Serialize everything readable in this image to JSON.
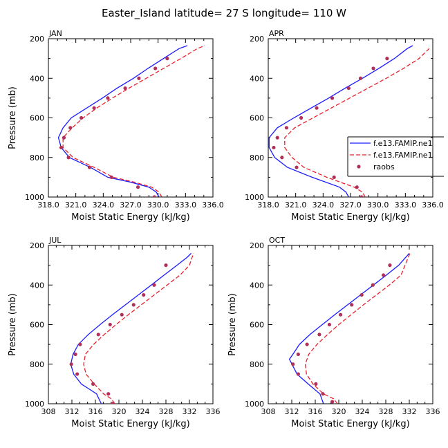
{
  "title": "Easter_Island  latitude= 27 S longitude= 110 W",
  "legend": {
    "entries": [
      {
        "label": "f.e13.FAMIP.ne1",
        "style": "solid",
        "color": "#1a1aff"
      },
      {
        "label": "f.e13.FAMIP.ne1",
        "style": "dashed",
        "color": "#e8202a"
      },
      {
        "label": "raobs",
        "style": "dot",
        "color": "#b0305a"
      }
    ]
  },
  "chart_data": [
    {
      "type": "line",
      "title": "JAN",
      "xlabel": "Moist Static Energy (kJ/kg)",
      "ylabel": "Pressure (mb)",
      "xlim": [
        318.0,
        336.0
      ],
      "ylim": [
        1000,
        200
      ],
      "xticks": [
        318.0,
        321.0,
        324.0,
        327.0,
        330.0,
        333.0,
        336.0
      ],
      "xtick_labels": [
        "318.0",
        "321.0",
        "324.0",
        "327.0",
        "330.0",
        "333.0",
        "336.0"
      ],
      "yticks": [
        200,
        400,
        600,
        800,
        1000
      ],
      "ytick_labels": [
        "200",
        "400",
        "600",
        "800",
        "1000"
      ],
      "series": [
        {
          "name": "f.e13.FAMIP.ne1",
          "style": "solid",
          "color": "#1a1aff",
          "x": [
            330.1,
            329.8,
            329.0,
            327.0,
            324.5,
            322.6,
            320.3,
            319.4,
            319.1,
            319.6,
            320.5,
            322.2,
            323.9,
            325.5,
            327.3,
            328.9,
            330.6,
            332.3,
            333.2
          ],
          "y": [
            1000,
            975,
            950,
            925,
            900,
            850,
            800,
            750,
            700,
            650,
            600,
            550,
            500,
            450,
            400,
            350,
            300,
            250,
            235
          ]
        },
        {
          "name": "f.e13.FAMIP.ne1",
          "style": "dashed",
          "color": "#e8202a",
          "x": [
            330.4,
            330.1,
            329.3,
            327.4,
            325.1,
            323.0,
            320.7,
            319.6,
            319.6,
            320.6,
            321.8,
            323.3,
            325.0,
            326.8,
            328.7,
            330.6,
            332.5,
            334.3,
            335.1
          ],
          "y": [
            1000,
            975,
            950,
            925,
            900,
            850,
            800,
            750,
            700,
            650,
            600,
            550,
            500,
            450,
            400,
            350,
            300,
            250,
            235
          ]
        },
        {
          "name": "raobs",
          "style": "dot",
          "color": "#b0305a",
          "x": [
            329.6,
            327.8,
            324.9,
            322.5,
            320.2,
            319.4,
            319.7,
            320.4,
            321.6,
            323.0,
            324.5,
            326.4,
            327.9,
            329.7,
            331.0
          ],
          "y": [
            1000,
            950,
            900,
            850,
            800,
            750,
            700,
            650,
            600,
            550,
            500,
            450,
            400,
            350,
            300
          ]
        }
      ]
    },
    {
      "type": "line",
      "title": "APR",
      "xlabel": "Moist Static Energy (kJ/kg)",
      "ylabel": "",
      "xlim": [
        318.0,
        336.0
      ],
      "ylim": [
        1000,
        200
      ],
      "xticks": [
        318.0,
        321.0,
        324.0,
        327.0,
        330.0,
        333.0,
        336.0
      ],
      "xtick_labels": [
        "318.0",
        "321.0",
        "324.0",
        "327.0",
        "330.0",
        "333.0",
        "336.0"
      ],
      "yticks": [
        200,
        400,
        600,
        800,
        1000
      ],
      "ytick_labels": [
        "200",
        "400",
        "600",
        "800",
        "1000"
      ],
      "series": [
        {
          "name": "f.e13.FAMIP.ne1",
          "style": "solid",
          "color": "#1a1aff",
          "x": [
            326.8,
            326.5,
            325.8,
            322.8,
            320.1,
            318.7,
            318.1,
            318.1,
            319.0,
            320.8,
            322.7,
            324.6,
            326.4,
            328.3,
            330.1,
            331.8,
            333.2,
            333.8
          ],
          "y": [
            1000,
            975,
            950,
            900,
            850,
            800,
            750,
            700,
            650,
            600,
            550,
            500,
            450,
            400,
            350,
            300,
            250,
            235
          ]
        },
        {
          "name": "f.e13.FAMIP.ne1",
          "style": "dashed",
          "color": "#e8202a",
          "x": [
            328.6,
            328.3,
            327.4,
            324.4,
            321.9,
            320.6,
            319.8,
            319.8,
            320.9,
            322.9,
            324.9,
            326.9,
            328.9,
            330.9,
            332.8,
            334.5,
            335.6
          ],
          "y": [
            1000,
            975,
            950,
            900,
            850,
            800,
            750,
            700,
            650,
            600,
            550,
            500,
            450,
            400,
            350,
            300,
            250
          ]
        },
        {
          "name": "raobs",
          "style": "dot",
          "color": "#b0305a",
          "x": [
            328.2,
            327.7,
            325.2,
            321.1,
            319.5,
            318.6,
            319.0,
            320.0,
            321.6,
            323.3,
            325.0,
            326.8,
            328.1,
            329.5,
            331.0
          ],
          "y": [
            1000,
            950,
            900,
            850,
            800,
            750,
            700,
            650,
            600,
            550,
            500,
            450,
            400,
            350,
            300
          ]
        }
      ]
    },
    {
      "type": "line",
      "title": "JUL",
      "xlabel": "Moist Static Energy (kJ/kg)",
      "ylabel": "Pressure (mb)",
      "xlim": [
        308,
        336
      ],
      "ylim": [
        1000,
        200
      ],
      "xticks": [
        308,
        312,
        316,
        320,
        324,
        328,
        332,
        336
      ],
      "xtick_labels": [
        "308",
        "312",
        "316",
        "320",
        "324",
        "328",
        "332",
        "336"
      ],
      "yticks": [
        200,
        400,
        600,
        800,
        1000
      ],
      "ytick_labels": [
        "200",
        "400",
        "600",
        "800",
        "1000"
      ],
      "series": [
        {
          "name": "f.e13.FAMIP.ne1",
          "style": "solid",
          "color": "#1a1aff",
          "x": [
            317.0,
            316.2,
            313.6,
            312.3,
            311.8,
            312.2,
            313.1,
            314.8,
            316.8,
            318.9,
            321.1,
            323.3,
            325.5,
            327.7,
            329.9,
            331.6,
            332.3
          ],
          "y": [
            1000,
            950,
            900,
            850,
            800,
            750,
            700,
            650,
            600,
            550,
            500,
            450,
            400,
            350,
            300,
            260,
            240
          ]
        },
        {
          "name": "f.e13.FAMIP.ne1",
          "style": "dashed",
          "color": "#e8202a",
          "x": [
            319.3,
            318.7,
            317.4,
            315.8,
            314.4,
            314.0,
            314.3,
            315.7,
            317.5,
            319.5,
            321.6,
            323.8,
            326.0,
            328.2,
            330.4,
            332.0,
            332.7
          ],
          "y": [
            1000,
            975,
            950,
            900,
            850,
            800,
            750,
            700,
            650,
            600,
            550,
            500,
            450,
            400,
            350,
            300,
            240
          ]
        },
        {
          "name": "raobs",
          "style": "dot",
          "color": "#b0305a",
          "x": [
            318.9,
            318.2,
            315.6,
            312.9,
            311.9,
            312.6,
            313.4,
            316.5,
            318.5,
            320.5,
            322.5,
            324.2,
            326.0,
            328.0
          ],
          "y": [
            1000,
            950,
            900,
            850,
            800,
            750,
            700,
            650,
            600,
            550,
            500,
            450,
            400,
            300
          ]
        }
      ]
    },
    {
      "type": "line",
      "title": "OCT",
      "xlabel": "Moist Static Energy (kJ/kg)",
      "ylabel": "Pressure (mb)",
      "xlim": [
        308,
        336
      ],
      "ylim": [
        1000,
        200
      ],
      "xticks": [
        308,
        312,
        316,
        320,
        324,
        328,
        332,
        336
      ],
      "xtick_labels": [
        "308",
        "312",
        "316",
        "320",
        "324",
        "328",
        "332",
        "336"
      ],
      "yticks": [
        200,
        400,
        600,
        800,
        1000
      ],
      "ytick_labels": [
        "200",
        "400",
        "600",
        "800",
        "1000"
      ],
      "series": [
        {
          "name": "f.e13.FAMIP.ne1",
          "style": "solid",
          "color": "#1a1aff",
          "x": [
            317.4,
            316.8,
            314.8,
            312.9,
            311.6,
            312.2,
            313.3,
            315.1,
            317.2,
            319.3,
            321.5,
            323.7,
            325.9,
            328.1,
            330.2,
            332.0
          ],
          "y": [
            1000,
            950,
            900,
            850,
            775,
            750,
            700,
            650,
            600,
            550,
            500,
            450,
            400,
            350,
            300,
            240
          ]
        },
        {
          "name": "f.e13.FAMIP.ne1",
          "style": "dashed",
          "color": "#e8202a",
          "x": [
            319.8,
            319.1,
            317.4,
            315.6,
            314.5,
            314.3,
            314.9,
            316.3,
            318.1,
            320.0,
            322.1,
            324.2,
            326.4,
            328.6,
            330.6,
            332.1
          ],
          "y": [
            1000,
            975,
            950,
            900,
            850,
            800,
            750,
            700,
            650,
            600,
            550,
            500,
            450,
            400,
            350,
            240
          ]
        },
        {
          "name": "raobs",
          "style": "dot",
          "color": "#b0305a",
          "x": [
            318.9,
            317.3,
            316.1,
            313.1,
            312.2,
            313.1,
            314.6,
            316.7,
            318.4,
            320.3,
            322.2,
            323.9,
            325.8,
            327.6,
            328.7
          ],
          "y": [
            990,
            950,
            900,
            850,
            800,
            750,
            700,
            650,
            600,
            550,
            500,
            450,
            400,
            350,
            300
          ]
        }
      ]
    }
  ]
}
